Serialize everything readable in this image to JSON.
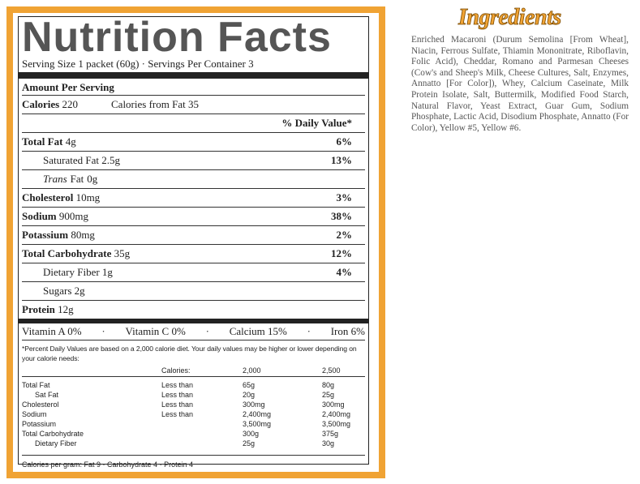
{
  "nutrition": {
    "title": "Nutrition Facts",
    "serving": "Serving Size 1 packet (60g) · Servings Per Container 3",
    "amount_per_serving": "Amount Per Serving",
    "calories": {
      "label": "Calories",
      "amount": "220",
      "from_fat": "Calories from Fat 35"
    },
    "dv_header": "% Daily Value*",
    "rows": [
      {
        "label": "Total Fat",
        "amount": "4g",
        "dv": "6%"
      },
      {
        "label": "Saturated Fat",
        "amount": "2.5g",
        "dv": "13%"
      },
      {
        "label_italic": "Trans",
        "label": "Fat",
        "amount": "0g"
      },
      {
        "label": "Cholesterol",
        "amount": "10mg",
        "dv": "3%"
      },
      {
        "label": "Sodium",
        "amount": "900mg",
        "dv": "38%"
      },
      {
        "label": "Potassium",
        "amount": "80mg",
        "dv": "2%"
      },
      {
        "label": "Total Carbohydrate",
        "amount": "35g",
        "dv": "12%"
      },
      {
        "label": "Dietary Fiber",
        "amount": "1g",
        "dv": "4%"
      },
      {
        "label": "Sugars",
        "amount": "2g"
      },
      {
        "label": "Protein",
        "amount": "12g"
      }
    ],
    "vitamins": [
      "Vitamin A  0%",
      "Vitamin C  0%",
      "Calcium  15%",
      "Iron  6%"
    ],
    "footnote": "*Percent Daily Values are based on a 2,000 calorie diet. Your daily values may be higher or lower depending on your calorie needs:",
    "table": {
      "header": [
        "Calories:",
        "2,000",
        "2,500"
      ],
      "rows": [
        {
          "nutrient": "Total Fat",
          "limit": "Less than",
          "values": [
            "65g",
            "80g"
          ]
        },
        {
          "nutrient": "Sat Fat",
          "limit": "Less than",
          "values": [
            "20g",
            "25g"
          ]
        },
        {
          "nutrient": "Cholesterol",
          "limit": "Less than",
          "values": [
            "300mg",
            "300mg"
          ]
        },
        {
          "nutrient": "Sodium",
          "limit": "Less than",
          "values": [
            "2,400mg",
            "2,400mg"
          ]
        },
        {
          "nutrient": "Potassium",
          "values": [
            "3,500mg",
            "3,500mg"
          ]
        },
        {
          "nutrient": "Total Carbohydrate",
          "values": [
            "300g",
            "375g"
          ]
        },
        {
          "nutrient": "Dietary Fiber",
          "values": [
            "25g",
            "30g"
          ]
        }
      ]
    },
    "calories_per_gram": "Calories per gram: Fat 9 · Carbohydrate 4 · Protein 4"
  },
  "ingredients": {
    "title": "Ingredients",
    "text": "Enriched Macaroni (Durum Semolina [From Wheat], Niacin, Ferrous Sulfate, Thiamin Mononitrate, Riboflavin, Folic Acid), Cheddar, Romano and Parmesan Cheeses (Cow's and Sheep's Milk, Cheese Cultures, Salt, Enzymes, Annatto [For Color]), Whey, Calcium Caseinate, Milk Protein Isolate, Salt, Buttermilk, Modified Food Starch, Natural Flavor, Yeast Extract, Guar Gum, Sodium Phosphate, Lactic Acid, Disodium Phosphate, Annatto (For Color), Yellow #5, Yellow #6."
  }
}
